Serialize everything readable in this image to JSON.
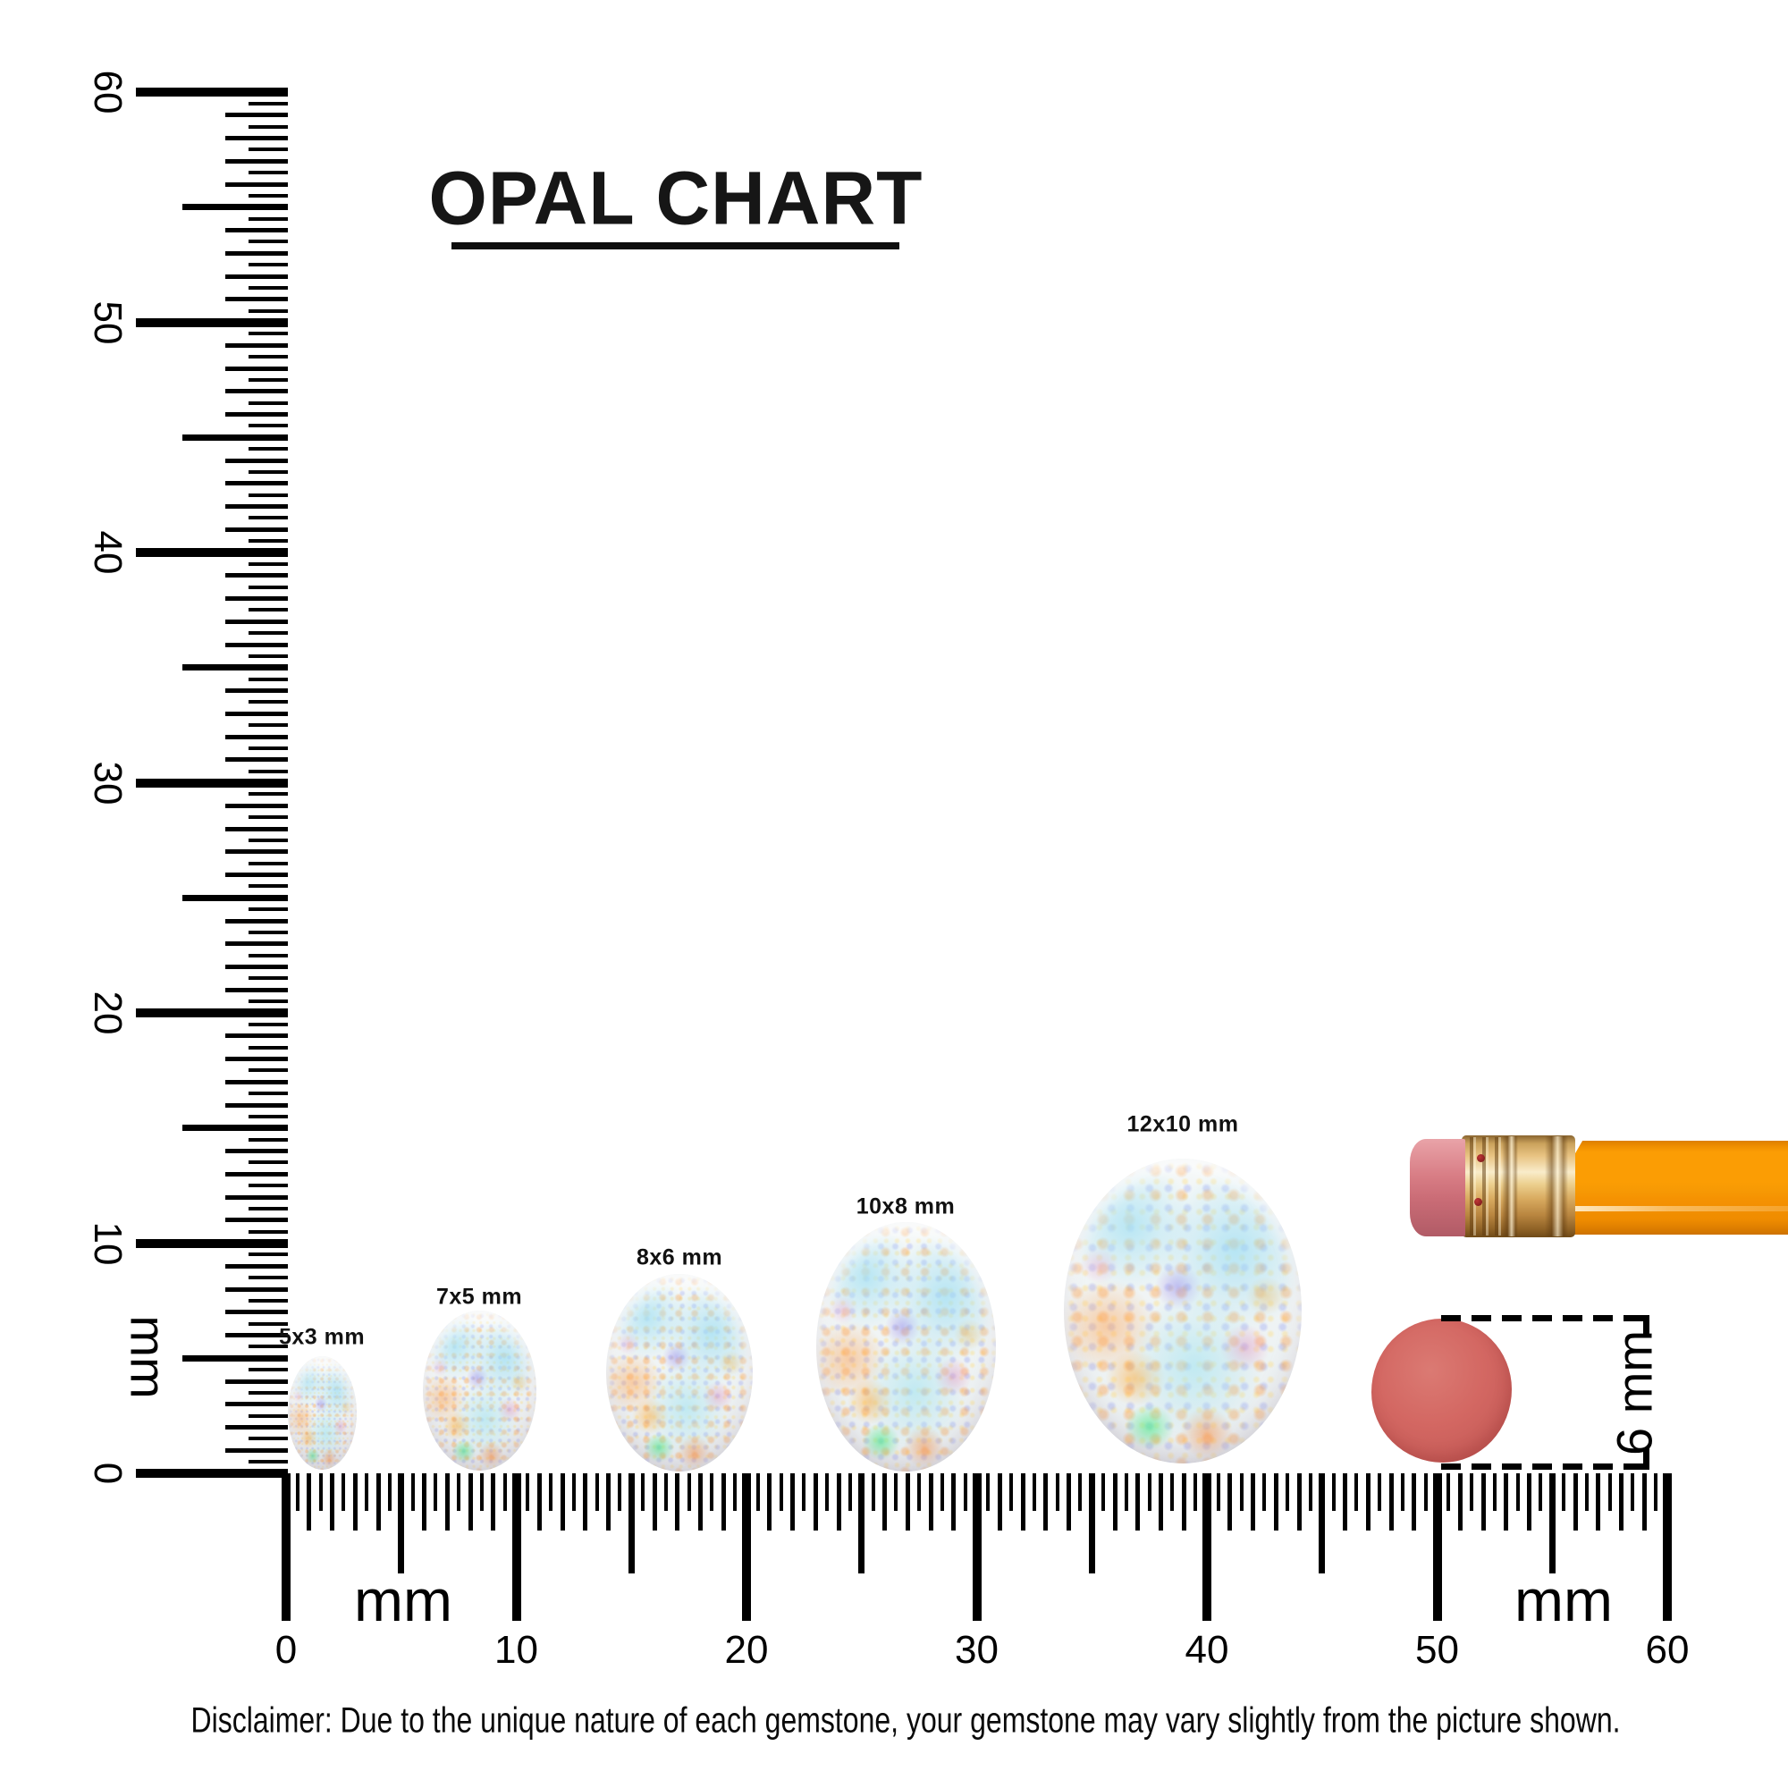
{
  "title": "OPAL CHART",
  "vertical_ruler": {
    "unit_label": "mm",
    "tick_labels": [
      "60",
      "50",
      "40",
      "30",
      "20",
      "10",
      "0"
    ],
    "range_mm": [
      0,
      60
    ]
  },
  "horizontal_ruler": {
    "unit_label_left": "mm",
    "unit_label_right": "mm",
    "tick_labels": [
      "0",
      "10",
      "20",
      "30",
      "40",
      "50",
      "60"
    ],
    "range_mm": [
      0,
      60
    ]
  },
  "gems": [
    {
      "label": "5x3 mm",
      "width_mm": 3,
      "height_mm": 5
    },
    {
      "label": "7x5 mm",
      "width_mm": 5,
      "height_mm": 7
    },
    {
      "label": "8x6 mm",
      "width_mm": 6,
      "height_mm": 8
    },
    {
      "label": "10x8 mm",
      "width_mm": 8,
      "height_mm": 10
    },
    {
      "label": "12x10 mm",
      "width_mm": 10,
      "height_mm": 12
    }
  ],
  "reference_objects": {
    "pencil": "pencil with eraser",
    "eraser_diameter_label": "6 mm"
  },
  "disclaimer": "Disclaimer: Due to the unique nature of each gemstone, your gemstone may vary slightly from the picture shown.",
  "colors": {
    "ink": "#000000",
    "pencil_body_orange": "#fb9d04",
    "ferrule_gold": "#d9ab60",
    "eraser_pink": "#d87d85",
    "round_eraser_red": "#d36762",
    "opal_base": "#eef3f4",
    "opal_cyan": "#a8e2f3"
  }
}
